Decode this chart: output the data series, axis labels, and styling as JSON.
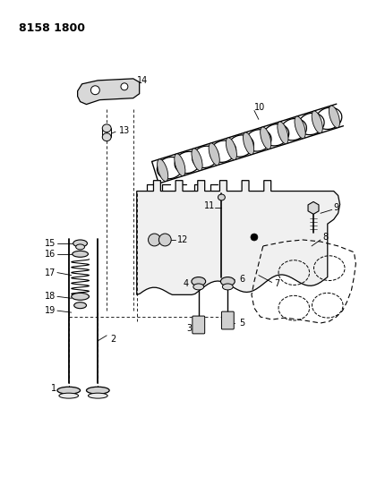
{
  "title": "8158 1800",
  "bg_color": "#ffffff",
  "fig_width": 4.11,
  "fig_height": 5.33,
  "dpi": 100
}
